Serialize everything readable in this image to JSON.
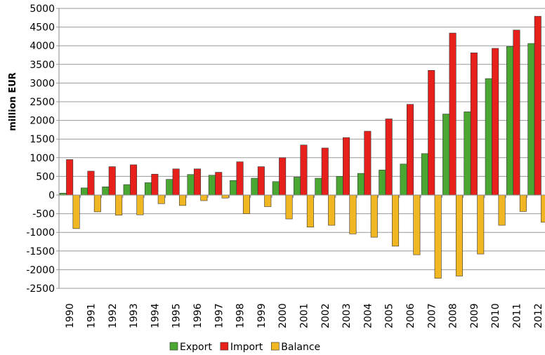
{
  "chart_data": {
    "type": "bar",
    "y_label": "million EUR",
    "categories": [
      "1990",
      "1991",
      "1992",
      "1993",
      "1994",
      "1995",
      "1996",
      "1997",
      "1998",
      "1999",
      "2000",
      "2001",
      "2002",
      "2003",
      "2004",
      "2005",
      "2006",
      "2007",
      "2008",
      "2009",
      "2010",
      "2011",
      "2012"
    ],
    "series": [
      {
        "name": "Export",
        "color": "#4aa832",
        "values": [
          50,
          190,
          220,
          280,
          330,
          420,
          550,
          530,
          390,
          450,
          360,
          480,
          450,
          500,
          580,
          670,
          830,
          1110,
          2170,
          2230,
          3120,
          3980,
          4060
        ]
      },
      {
        "name": "Import",
        "color": "#e8201c",
        "values": [
          950,
          640,
          760,
          810,
          560,
          700,
          700,
          610,
          890,
          760,
          1000,
          1340,
          1260,
          1540,
          1710,
          2040,
          2430,
          3340,
          4340,
          3810,
          3930,
          4420,
          4790
        ]
      },
      {
        "name": "Balance",
        "color": "#f0b722",
        "values": [
          -900,
          -450,
          -540,
          -530,
          -230,
          -280,
          -150,
          -80,
          -500,
          -310,
          -640,
          -860,
          -810,
          -1040,
          -1130,
          -1370,
          -1600,
          -2230,
          -2170,
          -1580,
          -810,
          -440,
          -730
        ]
      }
    ],
    "ylim": [
      -2500,
      5000
    ],
    "yticks": [
      -2500,
      -2000,
      -1500,
      -1000,
      -500,
      0,
      500,
      1000,
      1500,
      2000,
      2500,
      3000,
      3500,
      4000,
      4500,
      5000
    ],
    "grid": true,
    "legend": "bottom"
  }
}
